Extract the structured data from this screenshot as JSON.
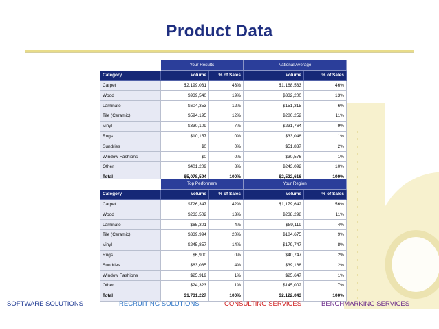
{
  "title": "Product Data",
  "table1": {
    "groups": [
      "Your Results",
      "National Average"
    ],
    "headers": [
      "Category",
      "Volume",
      "% of Sales",
      "Volume",
      "% of Sales"
    ],
    "rows": [
      [
        "Carpet",
        "$2,199,031",
        "43%",
        "$1,168,533",
        "46%"
      ],
      [
        "Wood",
        "$939,540",
        "19%",
        "$332,200",
        "13%"
      ],
      [
        "Laminate",
        "$604,353",
        "12%",
        "$151,315",
        "6%"
      ],
      [
        "Tile (Ceramic)",
        "$594,195",
        "12%",
        "$280,252",
        "11%"
      ],
      [
        "Vinyl",
        "$330,109",
        "7%",
        "$231,764",
        "9%"
      ],
      [
        "Rugs",
        "$10,157",
        "0%",
        "$33,048",
        "1%"
      ],
      [
        "Sundries",
        "$0",
        "0%",
        "$51,837",
        "2%"
      ],
      [
        "Window Fashions",
        "$0",
        "0%",
        "$30,576",
        "1%"
      ],
      [
        "Other",
        "$401,209",
        "8%",
        "$243,092",
        "10%"
      ],
      [
        "Total",
        "$5,078,594",
        "100%",
        "$2,522,616",
        "100%"
      ]
    ]
  },
  "table2": {
    "groups": [
      "Top Performers",
      "Your Region"
    ],
    "headers": [
      "Category",
      "Volume",
      "% of Sales",
      "Volume",
      "% of Sales"
    ],
    "rows": [
      [
        "Carpet",
        "$726,347",
        "42%",
        "$1,179,642",
        "56%"
      ],
      [
        "Wood",
        "$233,502",
        "13%",
        "$238,298",
        "11%"
      ],
      [
        "Laminate",
        "$65,301",
        "4%",
        "$89,119",
        "4%"
      ],
      [
        "Tile (Ceramic)",
        "$339,994",
        "20%",
        "$184,675",
        "9%"
      ],
      [
        "Vinyl",
        "$245,857",
        "14%",
        "$179,747",
        "8%"
      ],
      [
        "Rugs",
        "$6,900",
        "0%",
        "$40,747",
        "2%"
      ],
      [
        "Sundries",
        "$63,085",
        "4%",
        "$39,168",
        "2%"
      ],
      [
        "Window Fashions",
        "$25,919",
        "1%",
        "$25,647",
        "1%"
      ],
      [
        "Other",
        "$24,323",
        "1%",
        "$145,002",
        "7%"
      ],
      [
        "Total",
        "$1,731,227",
        "100%",
        "$2,122,043",
        "100%"
      ]
    ]
  },
  "footer": [
    {
      "label": "SOFTWARE SOLUTIONS",
      "color": "#1f3a93"
    },
    {
      "label": "RECRUITING SOLUTIONS",
      "color": "#2e75c6"
    },
    {
      "label": "CONSULTING SERVICES",
      "color": "#d02020"
    },
    {
      "label": "BENCHMARKING  SERVICES",
      "color": "#6b2a8a"
    }
  ],
  "colors": {
    "title": "#1f2f80",
    "header_dark": "#162877",
    "header_group": "#2b3e9a",
    "category_bg": "#e7e9f4",
    "rule": "#e8dc8a"
  },
  "decor": {
    "icon": "background-logo-watermark"
  }
}
